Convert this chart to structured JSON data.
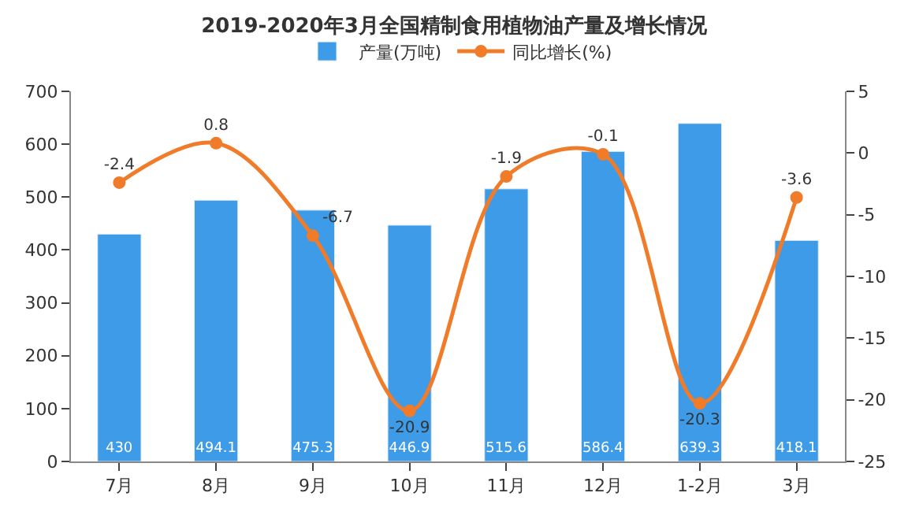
{
  "chart_data": {
    "type": "bar",
    "title": "2019-2020年3月全国精制食用植物油产量及增长情况",
    "categories": [
      "7月",
      "8月",
      "9月",
      "10月",
      "11月",
      "12月",
      "1-2月",
      "3月"
    ],
    "series": [
      {
        "name": "产量(万吨)",
        "color": "#3e9be8",
        "values": [
          430,
          494.1,
          475.3,
          446.9,
          515.6,
          586.4,
          639.3,
          418.1
        ]
      },
      {
        "name": "同比增长(%)",
        "type": "line",
        "axis": "y2",
        "color": "#f07c2a",
        "marker": "circle",
        "values": [
          -2.4,
          0.8,
          -6.7,
          -20.9,
          -1.9,
          -0.1,
          -20.3,
          -3.6
        ]
      }
    ],
    "ylim": [
      0,
      700
    ],
    "yticks": [
      0,
      100,
      200,
      300,
      400,
      500,
      600,
      700
    ],
    "y2lim": [
      -25,
      5
    ],
    "y2ticks": [
      -25,
      -20,
      -15,
      -10,
      -5,
      0,
      5
    ],
    "data_labels": true,
    "legend": "top"
  }
}
